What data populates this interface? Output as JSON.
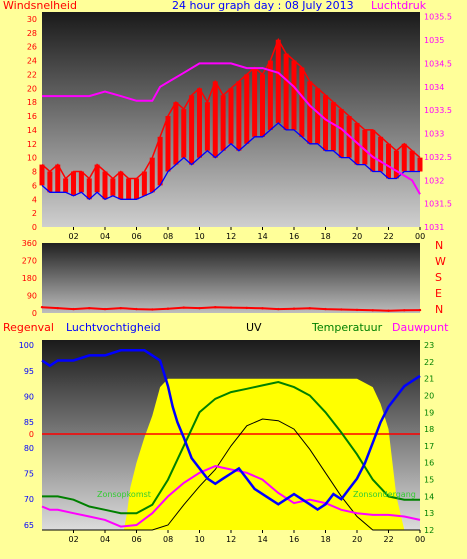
{
  "colors": {
    "background": "#ffff99",
    "wind": "#ff0000",
    "gust_fill": "#ff0000",
    "pressure": "#ff00ff",
    "wind_avg": "#0000ff",
    "direction": "#ff0000",
    "humidity": "#0000ff",
    "temperature": "#008000",
    "dewpoint": "#ff00ff",
    "uv": "#000000",
    "solar": "#ffff00",
    "rain": "#ff0000",
    "title_blue": "#0000ff"
  },
  "chart_data": [
    {
      "type": "line",
      "title": "24 hour graph day : 08 July 2013",
      "left_label": "Windsnelheid",
      "right_label": "Luchtdruk",
      "x_ticks": [
        "02",
        "04",
        "06",
        "08",
        "10",
        "12",
        "14",
        "16",
        "18",
        "20",
        "22",
        "00"
      ],
      "y_left_ticks": [
        0,
        2,
        4,
        6,
        8,
        10,
        12,
        14,
        16,
        18,
        20,
        22,
        24,
        26,
        28,
        30
      ],
      "y_left_range": [
        0,
        31
      ],
      "y_right_ticks": [
        1031,
        1031.5,
        1032,
        1032.5,
        1033,
        1033.5,
        1034,
        1034.5,
        1035,
        1035.5
      ],
      "y_right_range": [
        1031,
        1035.6
      ],
      "x_range": [
        0,
        24
      ],
      "series": [
        {
          "label": "Windsnelheid (gust)",
          "axis": "left",
          "x": [
            0,
            0.5,
            1,
            1.5,
            2,
            2.5,
            3,
            3.5,
            4,
            4.5,
            5,
            5.5,
            6,
            6.5,
            7,
            7.5,
            8,
            8.5,
            9,
            9.5,
            10,
            10.5,
            11,
            11.5,
            12,
            12.5,
            13,
            13.5,
            14,
            14.5,
            15,
            15.5,
            16,
            16.5,
            17,
            17.5,
            18,
            18.5,
            19,
            19.5,
            20,
            20.5,
            21,
            21.5,
            22,
            22.5,
            23,
            23.5,
            24
          ],
          "y": [
            9,
            8,
            9,
            7,
            8,
            8,
            7,
            9,
            8,
            7,
            8,
            7,
            7,
            8,
            10,
            13,
            16,
            18,
            17,
            19,
            20,
            18,
            21,
            19,
            20,
            21,
            22,
            23,
            22,
            24,
            27,
            25,
            24,
            23,
            21,
            20,
            19,
            18,
            17,
            16,
            15,
            14,
            14,
            13,
            12,
            11,
            12,
            11,
            10
          ]
        },
        {
          "label": "Windsnelheid (gemiddeld)",
          "axis": "left",
          "x": [
            0,
            0.5,
            1,
            1.5,
            2,
            2.5,
            3,
            3.5,
            4,
            4.5,
            5,
            5.5,
            6,
            6.5,
            7,
            7.5,
            8,
            8.5,
            9,
            9.5,
            10,
            10.5,
            11,
            11.5,
            12,
            12.5,
            13,
            13.5,
            14,
            14.5,
            15,
            15.5,
            16,
            16.5,
            17,
            17.5,
            18,
            18.5,
            19,
            19.5,
            20,
            20.5,
            21,
            21.5,
            22,
            22.5,
            23,
            23.5,
            24
          ],
          "y": [
            6,
            5,
            5,
            5,
            4.5,
            5,
            4,
            5,
            4,
            4.5,
            4,
            4,
            4,
            4.5,
            5,
            6,
            8,
            9,
            10,
            9,
            10,
            11,
            10,
            11,
            12,
            11,
            12,
            13,
            13,
            14,
            15,
            14,
            14,
            13,
            12,
            12,
            11,
            11,
            10,
            10,
            9,
            9,
            8,
            8,
            7,
            7,
            8,
            8,
            8
          ]
        },
        {
          "label": "Luchtdruk",
          "axis": "right",
          "x": [
            0,
            1,
            2,
            3,
            4,
            5,
            6,
            7,
            7.5,
            8,
            9,
            10,
            11,
            12,
            13,
            14,
            15,
            16,
            17,
            18,
            19,
            20,
            21,
            22,
            23,
            23.5,
            24
          ],
          "y": [
            1033.8,
            1033.8,
            1033.8,
            1033.8,
            1033.9,
            1033.8,
            1033.7,
            1033.7,
            1034,
            1034.1,
            1034.3,
            1034.5,
            1034.5,
            1034.5,
            1034.4,
            1034.4,
            1034.3,
            1034,
            1033.6,
            1033.3,
            1033.1,
            1032.8,
            1032.5,
            1032.3,
            1032.1,
            1032,
            1031.7
          ]
        }
      ]
    },
    {
      "type": "scatter",
      "title": "",
      "x_ticks": [
        "02",
        "04",
        "06",
        "08",
        "10",
        "12",
        "14",
        "16",
        "18",
        "20",
        "22",
        "00"
      ],
      "y_ticks": [
        0,
        90,
        180,
        270,
        360
      ],
      "y_range": [
        0,
        360
      ],
      "x_range": [
        0,
        24
      ],
      "direction_labels": [
        "N",
        "W",
        "S",
        "E",
        "N"
      ],
      "series": [
        {
          "label": "Windrichting",
          "x": [
            0,
            1,
            2,
            3,
            4,
            5,
            6,
            7,
            8,
            9,
            10,
            11,
            12,
            13,
            14,
            15,
            16,
            17,
            18,
            19,
            20,
            21,
            22,
            23,
            24
          ],
          "y": [
            30,
            25,
            20,
            25,
            20,
            25,
            20,
            18,
            22,
            28,
            25,
            30,
            28,
            26,
            24,
            20,
            22,
            24,
            20,
            18,
            16,
            14,
            12,
            14,
            15
          ]
        }
      ]
    },
    {
      "type": "line",
      "title": "",
      "labels": {
        "rain": "Regenval",
        "humidity": "Luchtvochtigheid",
        "uv": "UV",
        "temperature": "Temperatuur",
        "dewpoint": "Dauwpunt",
        "sunrise": "Zonsopkomst",
        "sunset": "Zonsondergang"
      },
      "x_ticks": [
        "02",
        "04",
        "06",
        "08",
        "10",
        "12",
        "14",
        "16",
        "18",
        "20",
        "22",
        "00"
      ],
      "y_left_ticks": [
        65,
        70,
        75,
        80,
        85,
        90,
        95,
        100
      ],
      "y_left_range": [
        64,
        101
      ],
      "y_right_ticks": [
        12,
        13,
        14,
        15,
        16,
        17,
        18,
        19,
        20,
        21,
        22,
        23
      ],
      "y_right_range": [
        12,
        23.3
      ],
      "rain_value": 0,
      "x_range": [
        0,
        24
      ],
      "series": [
        {
          "label": "Luchtvochtigheid",
          "axis": "left",
          "x": [
            0,
            0.5,
            1,
            2,
            3,
            4,
            5,
            6,
            6.5,
            7,
            7.5,
            8,
            8.3,
            8.6,
            9,
            9.5,
            10,
            10.5,
            11,
            11.5,
            12,
            12.5,
            13,
            13.5,
            14,
            14.5,
            15,
            15.5,
            16,
            16.5,
            17,
            17.5,
            18,
            18.5,
            19,
            19.5,
            20,
            20.5,
            21,
            21.5,
            22,
            22.5,
            23,
            23.5,
            24
          ],
          "y": [
            97,
            96,
            97,
            97,
            98,
            98,
            99,
            99,
            99,
            98,
            97,
            92,
            88,
            85,
            82,
            78,
            76,
            74,
            73,
            74,
            75,
            76,
            74,
            72,
            71,
            70,
            69,
            70,
            71,
            70,
            69,
            68,
            69,
            71,
            70,
            72,
            74,
            77,
            81,
            85,
            88,
            90,
            92,
            93,
            94
          ]
        },
        {
          "label": "Temperatuur",
          "axis": "right",
          "x": [
            0,
            1,
            2,
            3,
            4,
            5,
            6,
            7,
            8,
            9,
            10,
            11,
            12,
            13,
            14,
            15,
            16,
            17,
            18,
            19,
            20,
            21,
            22,
            23,
            24
          ],
          "y": [
            14,
            14,
            13.8,
            13.4,
            13.2,
            13,
            13,
            13.5,
            15,
            17,
            19,
            19.8,
            20.2,
            20.4,
            20.6,
            20.8,
            20.5,
            20,
            19,
            17.8,
            16.5,
            15,
            14,
            13.8,
            13.8
          ]
        },
        {
          "label": "Dauwpunt",
          "axis": "right",
          "x": [
            0,
            0.5,
            1,
            2,
            3,
            4,
            5,
            6,
            7,
            8,
            9,
            10,
            11,
            12,
            13,
            14,
            15,
            16,
            17,
            18,
            19,
            20,
            21,
            22,
            23,
            24
          ],
          "y": [
            13.4,
            13.2,
            13.2,
            13,
            12.8,
            12.6,
            12.2,
            12.3,
            13,
            14,
            14.8,
            15.4,
            15.8,
            15.6,
            15.4,
            15,
            14.2,
            13.6,
            13.8,
            13.6,
            13.2,
            13,
            12.9,
            12.9,
            12.8,
            12.6
          ]
        },
        {
          "label": "UV",
          "axis": "right",
          "x": [
            0,
            6,
            7,
            8,
            9,
            10,
            11,
            12,
            13,
            14,
            15,
            16,
            17,
            18,
            19,
            20,
            21,
            22,
            23,
            24
          ],
          "y": [
            12,
            12,
            12,
            12.3,
            13.5,
            14.6,
            15.6,
            17,
            18.2,
            18.6,
            18.5,
            18,
            16.8,
            15.4,
            14,
            12.8,
            12,
            12,
            12,
            12
          ]
        },
        {
          "label": "Zonnestraling",
          "axis": "right",
          "x": [
            0,
            5.2,
            5.4,
            5.6,
            6,
            6.5,
            7,
            7.5,
            8,
            9,
            10,
            11,
            12,
            13,
            14,
            15,
            16,
            17,
            18,
            19,
            20,
            21,
            21.5,
            22,
            22.5,
            23,
            24
          ],
          "y": [
            12,
            12,
            13,
            14.5,
            16,
            17.5,
            18.8,
            20.5,
            21,
            21,
            21,
            21,
            21,
            21,
            21,
            21,
            21,
            21,
            21,
            21,
            21,
            20.5,
            19.5,
            18,
            14,
            12,
            12
          ]
        }
      ]
    }
  ]
}
